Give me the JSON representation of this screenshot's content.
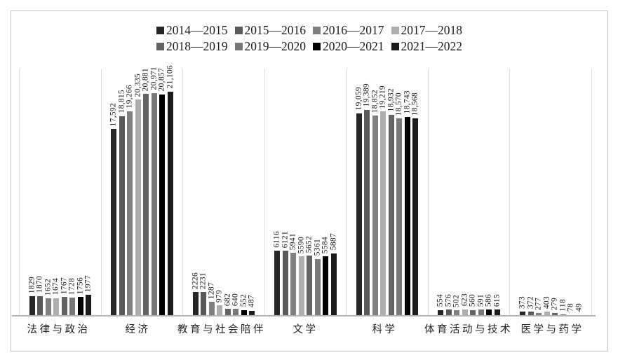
{
  "chart_data": {
    "type": "bar",
    "title": "",
    "xlabel": "",
    "ylabel": "",
    "legend_position": "top",
    "grid": "vertical-category-separators-only",
    "ylim": [
      0,
      23200
    ],
    "categories": [
      "法律与政治",
      "经济",
      "教育与社会陪伴",
      "文学",
      "科学",
      "体育活动与技术",
      "医学与药学"
    ],
    "series": [
      {
        "name": "2014—2015",
        "color": "#262626",
        "values": [
          1829,
          17592,
          2226,
          6116,
          19059,
          554,
          373
        ],
        "labels": [
          "1829",
          "17,592",
          "2226",
          "6116",
          "19,059",
          "554",
          "373"
        ]
      },
      {
        "name": "2015—2016",
        "color": "#595959",
        "values": [
          1870,
          18815,
          2231,
          6121,
          19389,
          576,
          372
        ],
        "labels": [
          "1870",
          "18,815",
          "2231",
          "6121",
          "19,389",
          "576",
          "372"
        ]
      },
      {
        "name": "2016—2017",
        "color": "#7f7f7f",
        "values": [
          1652,
          19266,
          1287,
          5941,
          18852,
          502,
          277
        ],
        "labels": [
          "1652",
          "19,266",
          "1287",
          "5941",
          "18,852",
          "502",
          "277"
        ]
      },
      {
        "name": "2017—2018",
        "color": "#aeaeae",
        "values": [
          1674,
          20335,
          979,
          5590,
          19219,
          623,
          403
        ],
        "labels": [
          "1674",
          "20,335",
          "979",
          "5590",
          "19,219",
          "623",
          "403"
        ]
      },
      {
        "name": "2018—2019",
        "color": "#636363",
        "values": [
          1767,
          20881,
          682,
          5652,
          18932,
          560,
          279
        ],
        "labels": [
          "1767",
          "20,881",
          "682",
          "5652",
          "18,932",
          "560",
          "279"
        ]
      },
      {
        "name": "2019—2020",
        "color": "#787878",
        "values": [
          1728,
          20971,
          640,
          5361,
          18570,
          591,
          118
        ],
        "labels": [
          "1728",
          "20,971",
          "640",
          "5361",
          "18,570",
          "591",
          "118"
        ]
      },
      {
        "name": "2020—2021",
        "color": "#000000",
        "values": [
          1756,
          20857,
          552,
          5584,
          18743,
          586,
          78
        ],
        "labels": [
          "1756",
          "20,857",
          "552",
          "5584",
          "18,743",
          "586",
          "78"
        ]
      },
      {
        "name": "2021—2022",
        "color": "#1c1c1c",
        "values": [
          1977,
          21106,
          487,
          5887,
          18568,
          615,
          49
        ],
        "labels": [
          "1977",
          "21,106",
          "487",
          "5887",
          "18,568",
          "615",
          "49"
        ]
      }
    ],
    "legend_rows": [
      [
        0,
        1,
        2,
        3
      ],
      [
        4,
        5,
        6,
        7
      ]
    ]
  },
  "colors": {
    "frame_border": "#c3c3c3",
    "gridline": "#dadada",
    "axis_line": "#b3b3b3",
    "label_text": "#111111"
  }
}
